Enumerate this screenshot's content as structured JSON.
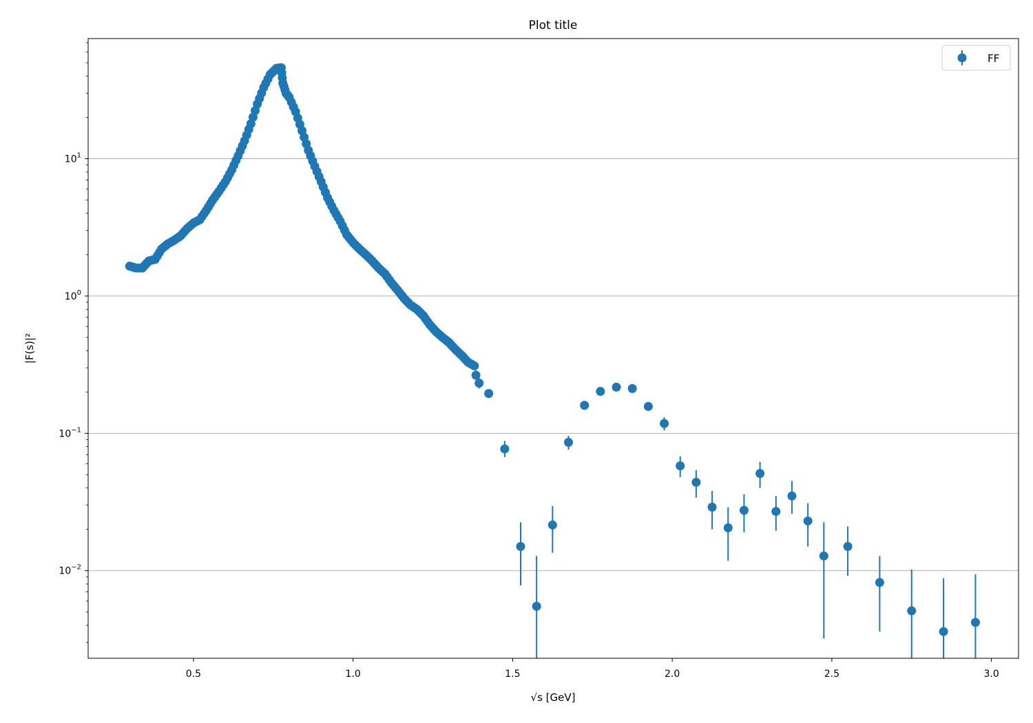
{
  "chart_data": {
    "type": "scatter",
    "title": "Plot title",
    "xlabel": "√s  [GeV]",
    "ylabel": "|F(s)|²",
    "xlim": [
      0.17,
      3.085
    ],
    "ylim": [
      0.0023,
      75
    ],
    "yscale": "log",
    "grid": "y-major",
    "legend_position": "top-right",
    "x_ticks": [
      0.5,
      1.0,
      1.5,
      2.0,
      2.5,
      3.0
    ],
    "x_tick_labels": [
      "0.5",
      "1.0",
      "1.5",
      "2.0",
      "2.5",
      "3.0"
    ],
    "y_ticks": [
      {
        "value": 0.01,
        "base": "10",
        "exponent": "−2"
      },
      {
        "value": 0.1,
        "base": "10",
        "exponent": "−1"
      },
      {
        "value": 1,
        "base": "10",
        "exponent": "0"
      },
      {
        "value": 10,
        "base": "10",
        "exponent": "1"
      }
    ],
    "color": "#1f77b4",
    "series": [
      {
        "name": "FF",
        "dense_curve": {
          "x": [
            0.3,
            0.32,
            0.34,
            0.36,
            0.38,
            0.4,
            0.42,
            0.44,
            0.46,
            0.48,
            0.5,
            0.52,
            0.54,
            0.56,
            0.58,
            0.6,
            0.62,
            0.64,
            0.66,
            0.68,
            0.7,
            0.72,
            0.74,
            0.76,
            0.775,
            0.78,
            0.79,
            0.8,
            0.82,
            0.84,
            0.86,
            0.88,
            0.9,
            0.92,
            0.94,
            0.96,
            0.98,
            1.0,
            1.02,
            1.04,
            1.06,
            1.08,
            1.1,
            1.12,
            1.14,
            1.16,
            1.18,
            1.2,
            1.22,
            1.24,
            1.26,
            1.28,
            1.3,
            1.32,
            1.34,
            1.36,
            1.38
          ],
          "y": [
            1.65,
            1.6,
            1.6,
            1.8,
            1.85,
            2.2,
            2.4,
            2.55,
            2.75,
            3.1,
            3.4,
            3.6,
            4.2,
            5.0,
            5.8,
            6.8,
            8.3,
            10.5,
            13.5,
            18.0,
            25.0,
            33.0,
            41.0,
            45.5,
            46.0,
            35.5,
            30.0,
            28.0,
            22.0,
            16.0,
            11.5,
            8.8,
            6.8,
            5.2,
            4.2,
            3.5,
            2.8,
            2.45,
            2.2,
            2.0,
            1.8,
            1.6,
            1.45,
            1.25,
            1.1,
            0.96,
            0.86,
            0.8,
            0.72,
            0.62,
            0.55,
            0.5,
            0.46,
            0.41,
            0.37,
            0.33,
            0.31
          ]
        },
        "points": [
          {
            "x": 1.385,
            "y": 0.265,
            "lo": 0.245,
            "hi": 0.287
          },
          {
            "x": 1.395,
            "y": 0.232,
            "lo": 0.212,
            "hi": 0.252
          },
          {
            "x": 1.425,
            "y": 0.195,
            "lo": 0.185,
            "hi": 0.205
          },
          {
            "x": 1.475,
            "y": 0.077,
            "lo": 0.067,
            "hi": 0.088
          },
          {
            "x": 1.525,
            "y": 0.015,
            "lo": 0.0078,
            "hi": 0.0225
          },
          {
            "x": 1.575,
            "y": 0.0055,
            "lo": 0.001,
            "hi": 0.0128
          },
          {
            "x": 1.625,
            "y": 0.0215,
            "lo": 0.0135,
            "hi": 0.0295
          },
          {
            "x": 1.675,
            "y": 0.086,
            "lo": 0.076,
            "hi": 0.096
          },
          {
            "x": 1.725,
            "y": 0.16,
            "lo": 0.152,
            "hi": 0.168
          },
          {
            "x": 1.775,
            "y": 0.202,
            "lo": 0.196,
            "hi": 0.208
          },
          {
            "x": 1.825,
            "y": 0.217,
            "lo": 0.21,
            "hi": 0.224
          },
          {
            "x": 1.875,
            "y": 0.212,
            "lo": 0.206,
            "hi": 0.218
          },
          {
            "x": 1.925,
            "y": 0.157,
            "lo": 0.148,
            "hi": 0.166
          },
          {
            "x": 1.975,
            "y": 0.118,
            "lo": 0.105,
            "hi": 0.131
          },
          {
            "x": 2.025,
            "y": 0.058,
            "lo": 0.048,
            "hi": 0.068
          },
          {
            "x": 2.075,
            "y": 0.044,
            "lo": 0.034,
            "hi": 0.054
          },
          {
            "x": 2.125,
            "y": 0.029,
            "lo": 0.02,
            "hi": 0.038
          },
          {
            "x": 2.175,
            "y": 0.0205,
            "lo": 0.0118,
            "hi": 0.029
          },
          {
            "x": 2.225,
            "y": 0.0275,
            "lo": 0.019,
            "hi": 0.036
          },
          {
            "x": 2.275,
            "y": 0.051,
            "lo": 0.04,
            "hi": 0.062
          },
          {
            "x": 2.325,
            "y": 0.027,
            "lo": 0.0195,
            "hi": 0.035
          },
          {
            "x": 2.375,
            "y": 0.035,
            "lo": 0.026,
            "hi": 0.045
          },
          {
            "x": 2.425,
            "y": 0.023,
            "lo": 0.015,
            "hi": 0.031
          },
          {
            "x": 2.475,
            "y": 0.0128,
            "lo": 0.0032,
            "hi": 0.0225
          },
          {
            "x": 2.55,
            "y": 0.015,
            "lo": 0.0092,
            "hi": 0.021
          },
          {
            "x": 2.65,
            "y": 0.0082,
            "lo": 0.0036,
            "hi": 0.0128
          },
          {
            "x": 2.75,
            "y": 0.0051,
            "lo": 0.001,
            "hi": 0.0102
          },
          {
            "x": 2.85,
            "y": 0.0036,
            "lo": 0.001,
            "hi": 0.0088
          },
          {
            "x": 2.95,
            "y": 0.0042,
            "lo": 0.001,
            "hi": 0.0094
          }
        ]
      }
    ]
  }
}
